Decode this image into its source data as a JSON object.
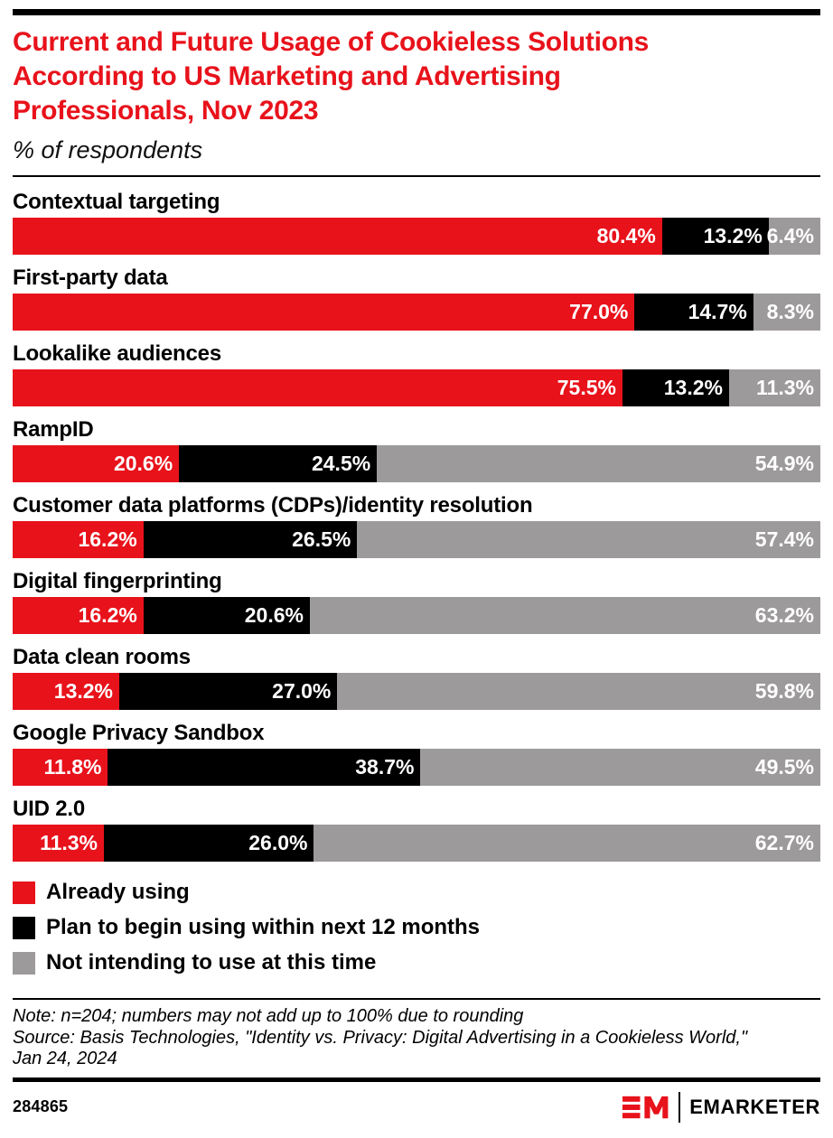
{
  "header": {
    "title_lines": [
      "Current and Future Usage of Cookieless Solutions",
      "According to US Marketing and Advertising",
      "Professionals, Nov 2023"
    ],
    "subtitle": "% of respondents"
  },
  "chart_data": {
    "type": "bar",
    "stacked": true,
    "orientation": "horizontal",
    "value_unit": "%",
    "axis": "none",
    "legend_position": "bottom",
    "categories": [
      "Contextual targeting",
      "First-party data",
      "Lookalike audiences",
      "RampID",
      "Customer data platforms (CDPs)/identity resolution",
      "Digital fingerprinting",
      "Data clean rooms",
      "Google Privacy Sandbox",
      "UID 2.0"
    ],
    "series": [
      {
        "name": "Already using",
        "color": "#E8121B",
        "values": [
          80.4,
          77.0,
          75.5,
          20.6,
          16.2,
          16.2,
          13.2,
          11.8,
          11.3
        ]
      },
      {
        "name": "Plan to begin using within next 12 months",
        "color": "#000000",
        "values": [
          13.2,
          14.7,
          13.2,
          24.5,
          26.5,
          20.6,
          27.0,
          38.7,
          26.0
        ]
      },
      {
        "name": "Not intending to use at this time",
        "color": "#9D9A9B",
        "values": [
          6.4,
          8.3,
          11.3,
          54.9,
          57.4,
          63.2,
          59.8,
          49.5,
          62.7
        ]
      }
    ]
  },
  "footer": {
    "note_lines": [
      "Note: n=204; numbers may not add up to 100% due to rounding",
      "Source: Basis Technologies, \"Identity vs. Privacy: Digital Advertising in a Cookieless World,\"",
      "Jan 24, 2024"
    ],
    "chart_id": "284865",
    "brand_name": "EMARKETER"
  },
  "colors": {
    "accent_red": "#E8121B",
    "bar_black": "#000000",
    "bar_gray": "#9D9A9B",
    "background": "#FFFFFF"
  }
}
